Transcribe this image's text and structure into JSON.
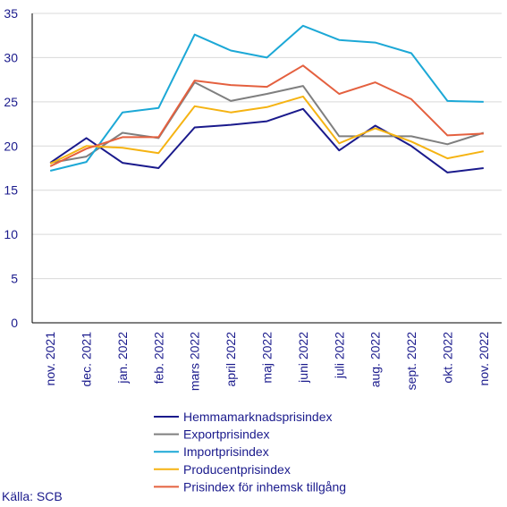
{
  "chart_data": {
    "type": "line",
    "categories": [
      "nov. 2021",
      "dec. 2021",
      "jan. 2022",
      "feb. 2022",
      "mars 2022",
      "april 2022",
      "maj 2022",
      "juni 2022",
      "juli 2022",
      "aug. 2022",
      "sept. 2022",
      "okt. 2022",
      "nov. 2022"
    ],
    "ylim": [
      0,
      35
    ],
    "yticks": [
      0,
      5,
      10,
      15,
      20,
      25,
      30,
      35
    ],
    "grid": "horizontal",
    "legend": "bottom",
    "series": [
      {
        "name": "Hemmamarknadsprisindex",
        "color": "#1a1a8c",
        "values": [
          18.1,
          20.9,
          18.1,
          17.5,
          22.1,
          22.4,
          22.8,
          24.2,
          19.5,
          22.3,
          20.0,
          17.0,
          17.5
        ]
      },
      {
        "name": "Exportprisindex",
        "color": "#7f7f7f",
        "values": [
          18.1,
          18.8,
          21.5,
          20.9,
          27.2,
          25.1,
          25.9,
          26.8,
          21.1,
          21.1,
          21.1,
          20.2,
          21.5
        ]
      },
      {
        "name": "Importprisindex",
        "color": "#1ca8d6",
        "values": [
          17.2,
          18.2,
          23.8,
          24.3,
          32.6,
          30.8,
          30.0,
          33.6,
          32.0,
          31.7,
          30.5,
          25.1,
          25.0
        ]
      },
      {
        "name": "Producentprisindex",
        "color": "#f5b312",
        "values": [
          18.0,
          20.0,
          19.8,
          19.2,
          24.5,
          23.8,
          24.4,
          25.6,
          20.3,
          22.0,
          20.5,
          18.6,
          19.4
        ]
      },
      {
        "name": "Prisindex för inhemsk tillgång",
        "color": "#e4603f",
        "values": [
          17.7,
          19.7,
          21.0,
          21.0,
          27.4,
          26.9,
          26.7,
          29.1,
          25.9,
          27.2,
          25.3,
          21.2,
          21.4
        ]
      }
    ]
  },
  "source": "Källa: SCB"
}
